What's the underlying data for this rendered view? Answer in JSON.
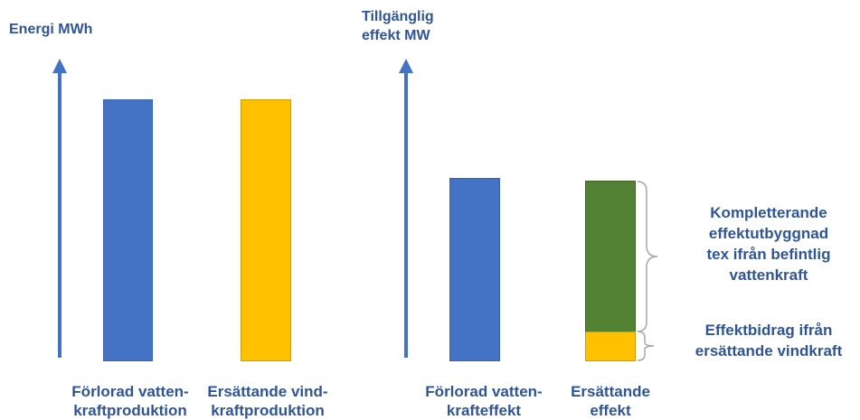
{
  "left_panel": {
    "axis_title": "Energi MWh",
    "bars": [
      {
        "label_lines": [
          "Förlorad vatten-",
          "kraftproduktion"
        ],
        "value": 1.0,
        "color": "#4472c4"
      },
      {
        "label_lines": [
          "Ersättande vind-",
          "kraftproduktion"
        ],
        "value": 1.0,
        "color": "#ffc000"
      }
    ]
  },
  "right_panel": {
    "axis_title_lines": [
      "Tillgänglig",
      "effekt MW"
    ],
    "bars": [
      {
        "label_lines": [
          "Förlorad vatten-",
          "krafteffekt"
        ],
        "value": 1.0,
        "color": "#4472c4"
      },
      {
        "label_lines": [
          "Ersättande",
          "effekt"
        ],
        "segments": [
          {
            "part": "vindkraft",
            "value": 0.17,
            "color": "#ffc000"
          },
          {
            "part": "komplettering",
            "value": 0.83,
            "color": "#548235"
          }
        ]
      }
    ],
    "annotations": {
      "upper_lines": [
        "Kompletterande",
        "effektutbyggnad",
        "tex ifrån befintlig",
        "vattenkraft"
      ],
      "lower_lines": [
        "Effektbidrag ifrån",
        "ersättande vindkraft"
      ]
    }
  }
}
